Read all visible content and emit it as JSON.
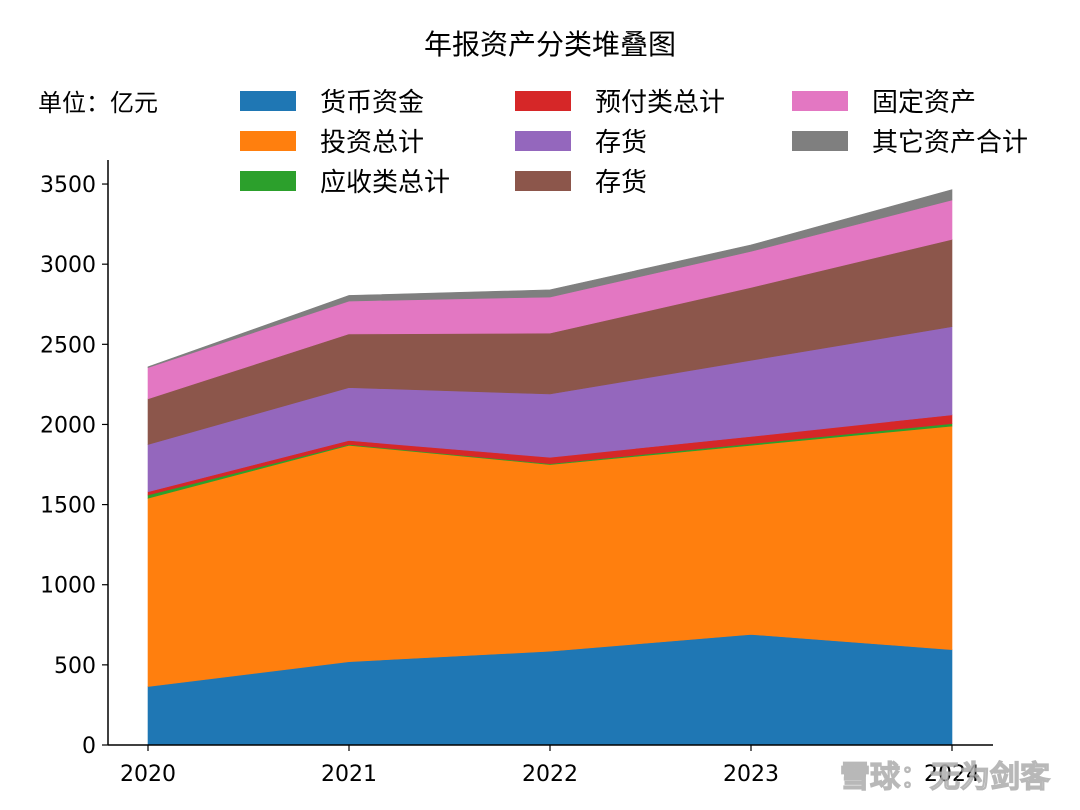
{
  "chart_data": {
    "type": "area",
    "stacked": true,
    "title": "年报资产分类堆叠图",
    "unit_label": "单位：亿元",
    "x": [
      "2020",
      "2021",
      "2022",
      "2023",
      "2024"
    ],
    "ylim": [
      0,
      3650
    ],
    "yticks": [
      0,
      500,
      1000,
      1500,
      2000,
      2500,
      3000,
      3500
    ],
    "grid": false,
    "legend_position": "top",
    "series": [
      {
        "name": "货币资金",
        "color": "#1f77b4",
        "values": [
          365,
          520,
          585,
          690,
          595
        ]
      },
      {
        "name": "投资总计",
        "color": "#ff7f0e",
        "values": [
          1175,
          1350,
          1165,
          1180,
          1395
        ]
      },
      {
        "name": "应收类总计",
        "color": "#2ca02c",
        "values": [
          20,
          5,
          5,
          10,
          15
        ]
      },
      {
        "name": "预付类总计",
        "color": "#d62728",
        "values": [
          20,
          25,
          40,
          45,
          55
        ]
      },
      {
        "name": "存货",
        "color": "#9467bd",
        "values": [
          295,
          330,
          395,
          475,
          550
        ]
      },
      {
        "name": "存货",
        "color": "#8c564b",
        "values": [
          285,
          335,
          380,
          455,
          545
        ]
      },
      {
        "name": "固定资产",
        "color": "#e377c2",
        "values": [
          195,
          205,
          225,
          225,
          245
        ]
      },
      {
        "name": "其它资产合计",
        "color": "#7f7f7f",
        "values": [
          5,
          35,
          45,
          40,
          65
        ]
      }
    ]
  },
  "watermark": {
    "text": "雪球：无为剑客"
  }
}
